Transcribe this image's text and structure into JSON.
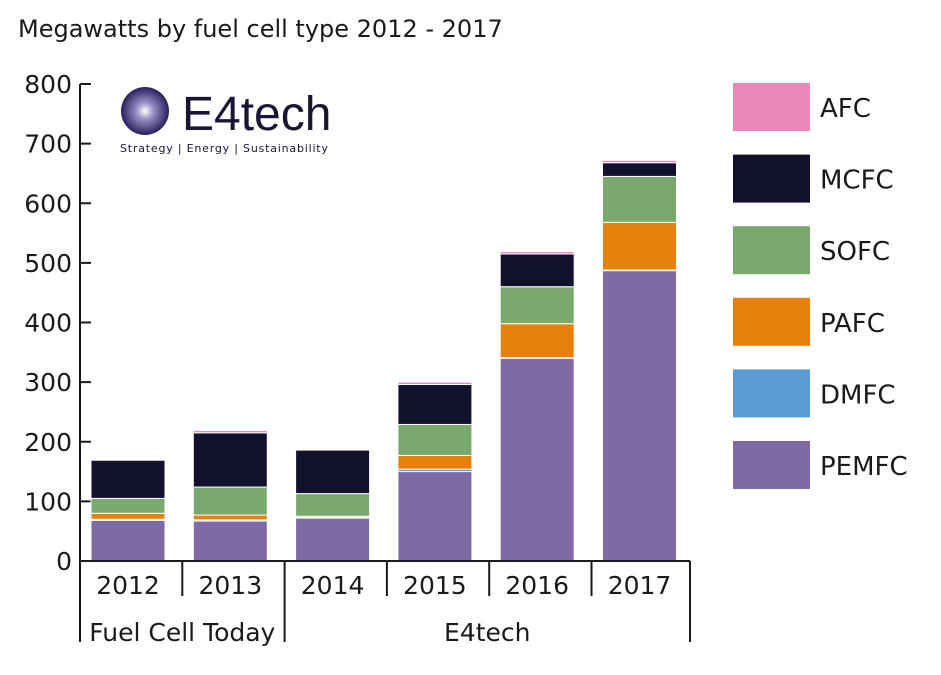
{
  "chart_data": {
    "type": "bar",
    "stacked": true,
    "title": "Megawatts by fuel cell type 2012 - 2017",
    "categories": [
      "2012",
      "2013",
      "2014",
      "2015",
      "2016",
      "2017"
    ],
    "category_groups": [
      {
        "label": "Fuel Cell Today",
        "categories": [
          "2012",
          "2013"
        ]
      },
      {
        "label": "E4tech",
        "categories": [
          "2014",
          "2015",
          "2016",
          "2017"
        ]
      }
    ],
    "series": [
      {
        "name": "PEMFC",
        "color": "#8069a7",
        "values": [
          68,
          67,
          72,
          150,
          340,
          487
        ]
      },
      {
        "name": "DMFC",
        "color": "#5a9bd4",
        "values": [
          2,
          2,
          1,
          4,
          1,
          1
        ]
      },
      {
        "name": "PAFC",
        "color": "#e8800e",
        "values": [
          10,
          8,
          2,
          23,
          57,
          80
        ]
      },
      {
        "name": "SOFC",
        "color": "#7aa96e",
        "values": [
          25,
          47,
          38,
          52,
          62,
          77
        ]
      },
      {
        "name": "MCFC",
        "color": "#12122e",
        "values": [
          64,
          91,
          73,
          67,
          55,
          23
        ]
      },
      {
        "name": "AFC",
        "color": "#e987b8",
        "values": [
          0,
          4,
          0,
          4,
          4,
          4
        ]
      }
    ],
    "legend_order": [
      "AFC",
      "MCFC",
      "SOFC",
      "PAFC",
      "DMFC",
      "PEMFC"
    ],
    "legend_position": "right",
    "ylim": [
      0,
      800
    ],
    "yticks": [
      0,
      100,
      200,
      300,
      400,
      500,
      600,
      700,
      800
    ],
    "xlabel": "",
    "ylabel": "",
    "grid": false
  },
  "logo": {
    "name": "E4tech",
    "tagline": "Strategy | Energy | Sustainability"
  }
}
